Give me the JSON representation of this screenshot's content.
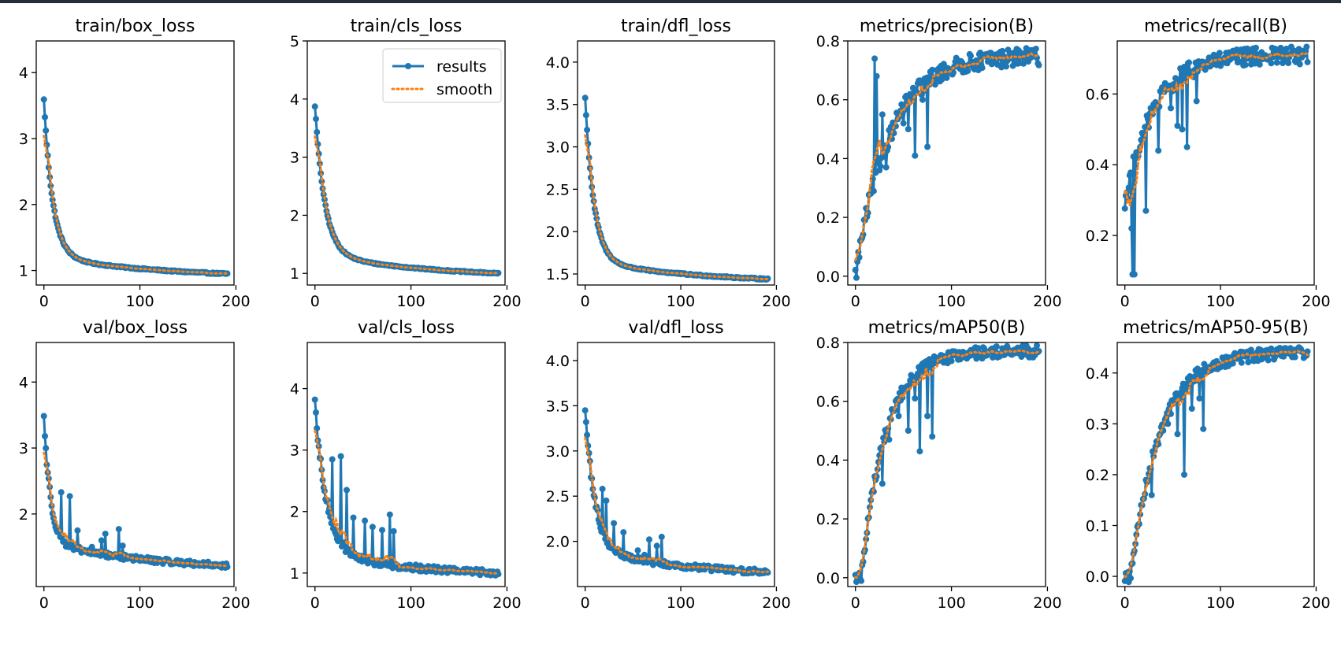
{
  "chart_data": {
    "type": "line",
    "layout": "2x5 grid of subplots",
    "legend": {
      "placement": "top-right of train/cls_loss",
      "entries": [
        {
          "label": "results",
          "style": "solid line with circle markers",
          "color": "#1f77b4"
        },
        {
          "label": "smooth",
          "style": "dotted line",
          "color": "#ff7f0e"
        }
      ]
    },
    "colors": {
      "results": "#1f77b4",
      "smooth": "#ff7f0e",
      "topbar": "#252d3b"
    },
    "panels": [
      {
        "title": "train/box_loss",
        "xlim": [
          -8,
          198
        ],
        "ylim": [
          0.78,
          4.48
        ],
        "xticks": [
          0,
          100,
          200
        ],
        "yticks": [
          1,
          2,
          3,
          4
        ],
        "ytick_labels": [
          "1",
          "2",
          "3",
          "4"
        ],
        "start": 4.35,
        "end": 0.95,
        "tau": 9,
        "knee_shape": 0.55,
        "noise": 0.01,
        "spikes": []
      },
      {
        "title": "train/cls_loss",
        "xlim": [
          -8,
          198
        ],
        "ylim": [
          0.8,
          5.0
        ],
        "xticks": [
          0,
          100,
          200
        ],
        "yticks": [
          1,
          2,
          3,
          4,
          5
        ],
        "ytick_labels": [
          "1",
          "2",
          "3",
          "4",
          "5"
        ],
        "start": 4.85,
        "end": 1.0,
        "tau": 10,
        "knee_shape": 0.5,
        "noise": 0.01,
        "spikes": [],
        "has_legend": true
      },
      {
        "title": "train/dfl_loss",
        "xlim": [
          -8,
          198
        ],
        "ylim": [
          1.37,
          4.25
        ],
        "xticks": [
          0,
          100,
          200
        ],
        "yticks": [
          1.5,
          2.0,
          2.5,
          3.0,
          3.5,
          4.0
        ],
        "ytick_labels": [
          "1.5",
          "2.0",
          "2.5",
          "3.0",
          "3.5",
          "4.0"
        ],
        "start": 4.2,
        "end": 1.44,
        "tau": 9,
        "knee_shape": 0.55,
        "noise": 0.008,
        "spikes": []
      },
      {
        "title": "metrics/precision(B)",
        "xlim": [
          -8,
          198
        ],
        "ylim": [
          -0.03,
          0.8
        ],
        "xticks": [
          0,
          100,
          200
        ],
        "yticks": [
          0.0,
          0.2,
          0.4,
          0.6,
          0.8
        ],
        "ytick_labels": [
          "0.0",
          "0.2",
          "0.4",
          "0.6",
          "0.8"
        ],
        "start": 0.0,
        "end": 0.75,
        "tau": 35,
        "rise": true,
        "noise": 0.03,
        "spikes": [
          [
            20,
            0.74
          ],
          [
            22,
            0.68
          ],
          [
            25,
            0.36
          ],
          [
            28,
            0.55
          ],
          [
            32,
            0.37
          ],
          [
            50,
            0.52
          ],
          [
            55,
            0.5
          ],
          [
            62,
            0.41
          ],
          [
            70,
            0.6
          ],
          [
            75,
            0.44
          ]
        ]
      },
      {
        "title": "metrics/recall(B)",
        "xlim": [
          -8,
          198
        ],
        "ylim": [
          0.06,
          0.75
        ],
        "xticks": [
          0,
          100,
          200
        ],
        "yticks": [
          0.2,
          0.4,
          0.6
        ],
        "ytick_labels": [
          "0.2",
          "0.4",
          "0.6"
        ],
        "start": 0.29,
        "end": 0.71,
        "tau": 30,
        "rise": true,
        "noise": 0.025,
        "spikes": [
          [
            5,
            0.37
          ],
          [
            7,
            0.22
          ],
          [
            8,
            0.09
          ],
          [
            10,
            0.09
          ],
          [
            22,
            0.27
          ],
          [
            35,
            0.44
          ],
          [
            48,
            0.56
          ],
          [
            55,
            0.51
          ],
          [
            60,
            0.5
          ],
          [
            65,
            0.45
          ],
          [
            75,
            0.58
          ]
        ]
      },
      {
        "title": "val/box_loss",
        "xlim": [
          -8,
          198
        ],
        "ylim": [
          0.9,
          4.6
        ],
        "xticks": [
          0,
          100,
          200
        ],
        "yticks": [
          2,
          3,
          4
        ],
        "ytick_labels": [
          "2",
          "3",
          "4"
        ],
        "start": 4.43,
        "end": 1.22,
        "tau": 7,
        "knee_shape": 0.4,
        "noise": 0.04,
        "spikes": [
          [
            18,
            2.33
          ],
          [
            27,
            2.27
          ],
          [
            35,
            1.75
          ],
          [
            50,
            1.5
          ],
          [
            60,
            1.6
          ],
          [
            64,
            1.7
          ],
          [
            78,
            1.77
          ],
          [
            82,
            1.52
          ]
        ]
      },
      {
        "title": "val/cls_loss",
        "xlim": [
          -8,
          198
        ],
        "ylim": [
          0.78,
          4.75
        ],
        "xticks": [
          0,
          100,
          200
        ],
        "yticks": [
          1,
          2,
          3,
          4
        ],
        "ytick_labels": [
          "1",
          "2",
          "3",
          "4"
        ],
        "start": 4.63,
        "end": 1.0,
        "tau": 12,
        "knee_shape": 0.5,
        "noise": 0.05,
        "spikes": [
          [
            18,
            2.85
          ],
          [
            27,
            2.9
          ],
          [
            33,
            2.35
          ],
          [
            40,
            1.9
          ],
          [
            52,
            1.85
          ],
          [
            60,
            1.75
          ],
          [
            70,
            1.7
          ],
          [
            78,
            1.95
          ],
          [
            82,
            1.68
          ]
        ]
      },
      {
        "title": "val/dfl_loss",
        "xlim": [
          -8,
          198
        ],
        "ylim": [
          1.5,
          4.2
        ],
        "xticks": [
          0,
          100,
          200
        ],
        "yticks": [
          2.0,
          2.5,
          3.0,
          3.5,
          4.0
        ],
        "ytick_labels": [
          "2.0",
          "2.5",
          "3.0",
          "3.5",
          "4.0"
        ],
        "start": 4.15,
        "end": 1.66,
        "tau": 10,
        "knee_shape": 0.45,
        "noise": 0.03,
        "spikes": [
          [
            18,
            2.58
          ],
          [
            22,
            2.45
          ],
          [
            30,
            2.2
          ],
          [
            40,
            2.1
          ],
          [
            55,
            1.9
          ],
          [
            62,
            1.85
          ],
          [
            67,
            2.02
          ],
          [
            75,
            1.95
          ],
          [
            80,
            2.05
          ]
        ]
      },
      {
        "title": "metrics/mAP50(B)",
        "xlim": [
          -8,
          198
        ],
        "ylim": [
          -0.03,
          0.8
        ],
        "xticks": [
          0,
          100,
          200
        ],
        "yticks": [
          0.0,
          0.2,
          0.4,
          0.6,
          0.8
        ],
        "ytick_labels": [
          "0.0",
          "0.2",
          "0.4",
          "0.6",
          "0.8"
        ],
        "start": 0.0,
        "end": 0.77,
        "tau": 25,
        "rise": true,
        "delay": 6,
        "noise": 0.02,
        "spikes": [
          [
            28,
            0.32
          ],
          [
            35,
            0.47
          ],
          [
            45,
            0.55
          ],
          [
            55,
            0.5
          ],
          [
            62,
            0.61
          ],
          [
            67,
            0.43
          ],
          [
            75,
            0.55
          ],
          [
            80,
            0.48
          ]
        ]
      },
      {
        "title": "metrics/mAP50-95(B)",
        "xlim": [
          -8,
          198
        ],
        "ylim": [
          -0.02,
          0.46
        ],
        "xticks": [
          0,
          100,
          200
        ],
        "yticks": [
          0.0,
          0.1,
          0.2,
          0.3,
          0.4
        ],
        "ytick_labels": [
          "0.0",
          "0.1",
          "0.2",
          "0.3",
          "0.4"
        ],
        "start": 0.0,
        "end": 0.44,
        "tau": 30,
        "rise": true,
        "delay": 6,
        "noise": 0.012,
        "spikes": [
          [
            28,
            0.16
          ],
          [
            35,
            0.26
          ],
          [
            45,
            0.3
          ],
          [
            55,
            0.28
          ],
          [
            62,
            0.2
          ],
          [
            70,
            0.33
          ],
          [
            78,
            0.35
          ],
          [
            82,
            0.29
          ]
        ]
      }
    ],
    "x_range_epochs": [
      0,
      191
    ]
  }
}
